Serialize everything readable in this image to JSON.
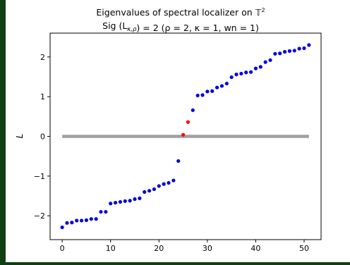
{
  "chart_data": {
    "type": "scatter",
    "title": "Eigenvalues of spectral localizer on 𝕋²",
    "subtitle": "Sig (L_{κ,ρ}) = 2 (ρ = 2, κ = 1, wn = 1)",
    "xlabel": "",
    "ylabel": "L",
    "xlim": [
      -2.5,
      53.5
    ],
    "ylim": [
      -2.6,
      2.6
    ],
    "x_ticks": [
      0,
      10,
      20,
      30,
      40,
      50
    ],
    "y_ticks": [
      -2,
      -1,
      0,
      1,
      2
    ],
    "grid": false,
    "reference_line": {
      "y": 0,
      "x_from": 0,
      "x_to": 51,
      "color": "#a0a0a0"
    },
    "series": [
      {
        "color": "#0000dd",
        "x": [
          0,
          1,
          2,
          3,
          4,
          5,
          6,
          7,
          8,
          9,
          10,
          11,
          12,
          13,
          14,
          15,
          16,
          17,
          18,
          19,
          20,
          21,
          22,
          23,
          24,
          27,
          28,
          29,
          30,
          31,
          32,
          33,
          34,
          35,
          36,
          37,
          38,
          39,
          40,
          41,
          42,
          43,
          44,
          45,
          46,
          47,
          48,
          49,
          50,
          51
        ],
        "y": [
          -2.29,
          -2.18,
          -2.17,
          -2.12,
          -2.12,
          -2.11,
          -2.08,
          -2.08,
          -1.9,
          -1.9,
          -1.69,
          -1.67,
          -1.65,
          -1.63,
          -1.62,
          -1.58,
          -1.56,
          -1.4,
          -1.37,
          -1.33,
          -1.25,
          -1.2,
          -1.17,
          -1.11,
          -0.62,
          0.66,
          1.03,
          1.04,
          1.13,
          1.14,
          1.23,
          1.27,
          1.33,
          1.49,
          1.56,
          1.58,
          1.61,
          1.62,
          1.71,
          1.75,
          1.87,
          1.92,
          2.08,
          2.09,
          2.13,
          2.15,
          2.16,
          2.21,
          2.22,
          2.3
        ]
      },
      {
        "color": "#ff0000",
        "x": [
          25,
          26
        ],
        "y": [
          0.04,
          0.36
        ]
      }
    ]
  }
}
